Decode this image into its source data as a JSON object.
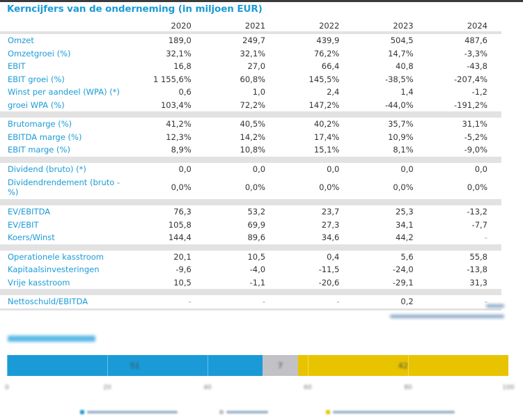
{
  "title": "Kerncijfers van de onderneming (in miljoen EUR)",
  "table": {
    "years": [
      "2020",
      "2021",
      "2022",
      "2023",
      "2024"
    ],
    "groups": [
      {
        "rows": [
          {
            "label": "Omzet",
            "values": [
              "189,0",
              "249,7",
              "439,9",
              "504,5",
              "487,6"
            ]
          },
          {
            "label": "Omzetgroei (%)",
            "values": [
              "32,1%",
              "32,1%",
              "76,2%",
              "14,7%",
              "-3,3%"
            ]
          },
          {
            "label": "EBIT",
            "values": [
              "16,8",
              "27,0",
              "66,4",
              "40,8",
              "-43,8"
            ]
          },
          {
            "label": "EBIT groei (%)",
            "values": [
              "1 155,6%",
              "60,8%",
              "145,5%",
              "-38,5%",
              "-207,4%"
            ]
          },
          {
            "label": "Winst per aandeel (WPA) (*)",
            "values": [
              "0,6",
              "1,0",
              "2,4",
              "1,4",
              "-1,2"
            ]
          },
          {
            "label": "groei WPA (%)",
            "values": [
              "103,4%",
              "72,2%",
              "147,2%",
              "-44,0%",
              "-191,2%"
            ]
          }
        ]
      },
      {
        "rows": [
          {
            "label": "Brutomarge (%)",
            "values": [
              "41,2%",
              "40,5%",
              "40,2%",
              "35,7%",
              "31,1%"
            ]
          },
          {
            "label": "EBITDA marge (%)",
            "values": [
              "12,3%",
              "14,2%",
              "17,4%",
              "10,9%",
              "-5,2%"
            ]
          },
          {
            "label": "EBIT marge (%)",
            "values": [
              "8,9%",
              "10,8%",
              "15,1%",
              "8,1%",
              "-9,0%"
            ]
          }
        ]
      },
      {
        "rows": [
          {
            "label": "Dividend (bruto) (*)",
            "values": [
              "0,0",
              "0,0",
              "0,0",
              "0,0",
              "0,0"
            ]
          },
          {
            "label": "Dividendrendement (bruto - %)",
            "values": [
              "0,0%",
              "0,0%",
              "0,0%",
              "0,0%",
              "0,0%"
            ],
            "tall": true
          }
        ]
      },
      {
        "rows": [
          {
            "label": "EV/EBITDA",
            "values": [
              "76,3",
              "53,2",
              "23,7",
              "25,3",
              "-13,2"
            ]
          },
          {
            "label": "EV/EBIT",
            "values": [
              "105,8",
              "69,9",
              "27,3",
              "34,1",
              "-7,7"
            ]
          },
          {
            "label": "Koers/Winst",
            "values": [
              "144,4",
              "89,6",
              "34,6",
              "44,2",
              "-"
            ]
          }
        ]
      },
      {
        "rows": [
          {
            "label": "Operationele kasstroom",
            "values": [
              "20,1",
              "10,5",
              "0,4",
              "5,6",
              "55,8"
            ]
          },
          {
            "label": "Kapitaalsinvesteringen",
            "values": [
              "-9,6",
              "-4,0",
              "-11,5",
              "-24,0",
              "-13,8"
            ]
          },
          {
            "label": "Vrije kasstroom",
            "values": [
              "10,5",
              "-1,1",
              "-20,6",
              "-29,1",
              "31,3"
            ]
          }
        ]
      },
      {
        "rows": [
          {
            "label": "Nettoschuld/EBITDA",
            "values": [
              "-",
              "-",
              "-",
              "0,2",
              "-"
            ]
          }
        ]
      }
    ]
  },
  "chart_data": {
    "type": "bar",
    "orientation": "horizontal-stacked",
    "title": "",
    "categories": [
      ""
    ],
    "series": [
      {
        "name": "",
        "values": [
          51
        ],
        "color": "#1a9bd7"
      },
      {
        "name": "",
        "values": [
          7
        ],
        "color": "#c2c2c6"
      },
      {
        "name": "",
        "values": [
          42
        ],
        "color": "#e8c400"
      }
    ],
    "data_labels": [
      "51",
      "7",
      "42"
    ],
    "xlim": [
      0,
      100
    ],
    "xticks": [
      "0",
      "20",
      "40",
      "60",
      "80",
      "100"
    ],
    "grid": true,
    "legend": "bottom",
    "note": "section title, footnote and legend texts are blurred/illegible in the screenshot"
  }
}
